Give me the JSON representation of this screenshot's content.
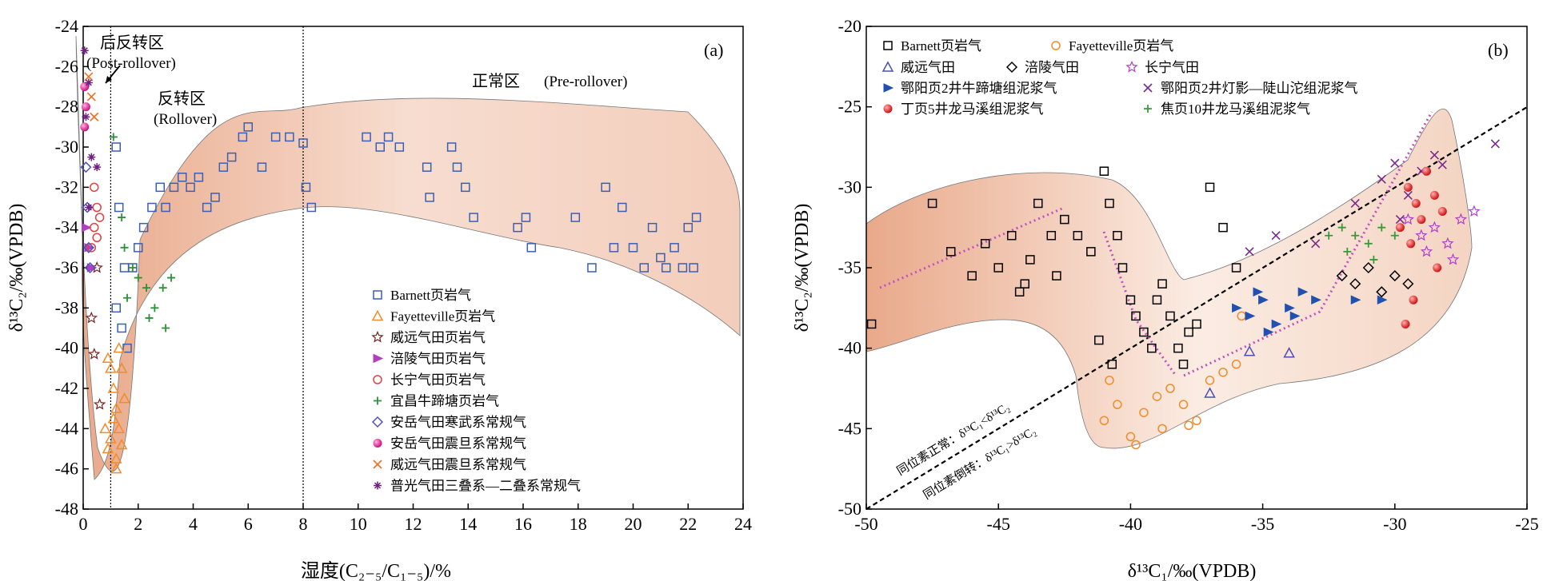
{
  "figure": {
    "panel_a": {
      "label": "(a)",
      "xlabel": "湿度(C₂₋₅/C₁₋₅)/%",
      "ylabel": "δ¹³C₂/‰(VPDB)",
      "zones": [
        {
          "name": "后反转区",
          "en": "(Post-rollover)"
        },
        {
          "name": "反转区",
          "en": "(Rollover)"
        },
        {
          "name": "正常区",
          "en": "(Pre-rollover)"
        }
      ]
    },
    "panel_b": {
      "label": "(b)",
      "xlabel": "δ¹³C₁/‰(VPDB)",
      "ylabel": "δ¹³C₂/‰(VPDB)",
      "line_normal": "同位素正常：δ¹³C₁<δ¹³C₂",
      "line_reversed": "同位素倒转：δ¹³C₁>δ¹³C₂"
    }
  },
  "colors": {
    "barnett_a": "#3a5fb5",
    "fayetteville": "#f08c2a",
    "weiyuan": "#7a2020",
    "fuling_a": "#b040c0",
    "changning_a": "#e04040",
    "yichang": "#2f8f3a",
    "anyue_camb": "#5050c0",
    "anyue_sin": "#e0208c",
    "weiyuan_sin": "#f07020",
    "puguang": "#702080",
    "blue_tri": "#2050b0",
    "purple_x": "#7a2a8c",
    "red_dot": "#e02020",
    "green_plus": "#3a9a3a",
    "star_b": "#b040c8",
    "envelope": "#eec0a4"
  },
  "chart_data": [
    {
      "type": "scatter",
      "panel": "a",
      "xlabel": "湿度(C₂₋₅/C₁₋₅)/%",
      "ylabel": "δ¹³C₂/‰(VPDB)",
      "xlim": [
        0,
        24
      ],
      "ylim": [
        -48,
        -24
      ],
      "xticks": [
        0,
        2,
        4,
        6,
        8,
        10,
        12,
        14,
        16,
        18,
        20,
        22,
        24
      ],
      "yticks": [
        -24,
        -26,
        -28,
        -30,
        -32,
        -34,
        -36,
        -38,
        -40,
        -42,
        -44,
        -46,
        -48
      ],
      "vlines": [
        1,
        8
      ],
      "legend_position": "bottom-center",
      "series": [
        {
          "name": "Barnett页岩气",
          "marker": "square",
          "points": [
            [
              1.2,
              -30
            ],
            [
              1.3,
              -33
            ],
            [
              1.5,
              -36
            ],
            [
              1.2,
              -38
            ],
            [
              1.4,
              -39
            ],
            [
              1.6,
              -40
            ],
            [
              1.8,
              -36
            ],
            [
              2.0,
              -35
            ],
            [
              2.2,
              -34
            ],
            [
              2.5,
              -33
            ],
            [
              2.8,
              -32
            ],
            [
              3.0,
              -33
            ],
            [
              3.3,
              -32
            ],
            [
              3.6,
              -31.5
            ],
            [
              3.9,
              -32
            ],
            [
              4.2,
              -31.5
            ],
            [
              4.5,
              -33
            ],
            [
              4.8,
              -32.5
            ],
            [
              5.1,
              -31
            ],
            [
              5.4,
              -30.5
            ],
            [
              5.8,
              -29.5
            ],
            [
              6.0,
              -29
            ],
            [
              6.5,
              -31
            ],
            [
              7.0,
              -29.5
            ],
            [
              7.5,
              -29.5
            ],
            [
              8.0,
              -29.8
            ],
            [
              8.1,
              -32
            ],
            [
              8.3,
              -33
            ],
            [
              10.3,
              -29.5
            ],
            [
              10.8,
              -30
            ],
            [
              11.1,
              -29.5
            ],
            [
              11.5,
              -30
            ],
            [
              12.5,
              -31
            ],
            [
              12.6,
              -32.5
            ],
            [
              13.4,
              -30
            ],
            [
              13.6,
              -31
            ],
            [
              13.9,
              -32
            ],
            [
              14.2,
              -33.5
            ],
            [
              15.8,
              -34
            ],
            [
              16.1,
              -33.5
            ],
            [
              16.3,
              -35
            ],
            [
              17.9,
              -33.5
            ],
            [
              18.5,
              -36
            ],
            [
              19.0,
              -32
            ],
            [
              19.3,
              -35
            ],
            [
              19.6,
              -33
            ],
            [
              20.0,
              -35
            ],
            [
              20.4,
              -36
            ],
            [
              20.7,
              -34
            ],
            [
              21.0,
              -35.5
            ],
            [
              21.2,
              -36
            ],
            [
              21.5,
              -35
            ],
            [
              21.8,
              -36
            ],
            [
              22.0,
              -34
            ],
            [
              22.3,
              -33.5
            ],
            [
              22.2,
              -36
            ]
          ]
        },
        {
          "name": "Fayetteville页岩气",
          "marker": "triangle",
          "points": [
            [
              0.9,
              -40.5
            ],
            [
              1.0,
              -41
            ],
            [
              1.1,
              -42
            ],
            [
              1.2,
              -43
            ],
            [
              1.3,
              -44
            ],
            [
              1.0,
              -44.5
            ],
            [
              0.9,
              -45
            ],
            [
              1.2,
              -45.5
            ],
            [
              1.4,
              -41
            ],
            [
              1.5,
              -42.5
            ],
            [
              1.3,
              -40
            ],
            [
              1.1,
              -43.5
            ],
            [
              0.8,
              -44
            ],
            [
              1.4,
              -44.8
            ],
            [
              1.2,
              -46
            ]
          ]
        },
        {
          "name": "威远气田页岩气",
          "marker": "star",
          "points": [
            [
              0.3,
              -38.5
            ],
            [
              0.4,
              -40.3
            ],
            [
              0.6,
              -42.8
            ],
            [
              0.5,
              -36
            ]
          ]
        },
        {
          "name": "涪陵气田页岩气",
          "marker": "tri-right",
          "points": [
            [
              0.1,
              -34
            ],
            [
              0.2,
              -35
            ],
            [
              0.3,
              -36
            ]
          ]
        },
        {
          "name": "长宁气田页岩气",
          "marker": "circle",
          "points": [
            [
              0.4,
              -32
            ],
            [
              0.5,
              -33
            ],
            [
              0.4,
              -34
            ],
            [
              0.5,
              -34.5
            ],
            [
              0.6,
              -33.5
            ],
            [
              0.3,
              -35
            ]
          ]
        },
        {
          "name": "宜昌牛蹄塘页岩气",
          "marker": "plus",
          "points": [
            [
              1.1,
              -29.5
            ],
            [
              1.4,
              -33.5
            ],
            [
              1.5,
              -35
            ],
            [
              1.8,
              -36
            ],
            [
              2.0,
              -36.5
            ],
            [
              2.3,
              -37
            ],
            [
              2.6,
              -38
            ],
            [
              2.9,
              -37
            ],
            [
              3.2,
              -36.5
            ],
            [
              3.0,
              -39
            ],
            [
              2.4,
              -38.5
            ],
            [
              1.6,
              -37.5
            ]
          ]
        },
        {
          "name": "安岳气田寒武系常规气",
          "marker": "diamond",
          "points": [
            [
              0.1,
              -31
            ],
            [
              0.15,
              -33
            ],
            [
              0.2,
              -35
            ],
            [
              0.25,
              -36
            ]
          ]
        },
        {
          "name": "安岳气田震旦系常规气",
          "marker": "ball",
          "points": [
            [
              0.05,
              -27
            ],
            [
              0.1,
              -28
            ],
            [
              0.05,
              -29
            ]
          ]
        },
        {
          "name": "威远气田震旦系常规气",
          "marker": "x",
          "points": [
            [
              0.2,
              -26.5
            ],
            [
              0.3,
              -27.5
            ],
            [
              0.4,
              -28.5
            ]
          ]
        },
        {
          "name": "普光气田三叠系—二叠系常规气",
          "marker": "asterisk",
          "points": [
            [
              0.05,
              -25.2
            ],
            [
              0.2,
              -26.8
            ],
            [
              0.1,
              -28.5
            ],
            [
              0.3,
              -30.5
            ],
            [
              0.5,
              -31
            ],
            [
              0.2,
              -33
            ]
          ]
        }
      ]
    },
    {
      "type": "scatter",
      "panel": "b",
      "xlabel": "δ¹³C₁/‰(VPDB)",
      "ylabel": "δ¹³C₂/‰(VPDB)",
      "xlim": [
        -50,
        -25
      ],
      "ylim": [
        -50,
        -20
      ],
      "xticks": [
        -50,
        -45,
        -40,
        -35,
        -30,
        -25
      ],
      "yticks": [
        -20,
        -25,
        -30,
        -35,
        -40,
        -45,
        -50
      ],
      "legend_position": "top-left",
      "series": [
        {
          "name": "Barnett页岩气",
          "marker": "square",
          "points": [
            [
              -47.5,
              -31
            ],
            [
              -46.8,
              -34
            ],
            [
              -46,
              -35.5
            ],
            [
              -45.5,
              -33.5
            ],
            [
              -45,
              -35
            ],
            [
              -44.5,
              -33
            ],
            [
              -44,
              -36
            ],
            [
              -43.5,
              -31
            ],
            [
              -43,
              -33
            ],
            [
              -42.5,
              -32
            ],
            [
              -42,
              -33
            ],
            [
              -41.5,
              -34
            ],
            [
              -41,
              -29
            ],
            [
              -40.8,
              -31
            ],
            [
              -40.5,
              -33
            ],
            [
              -40.3,
              -35
            ],
            [
              -40,
              -37
            ],
            [
              -39.8,
              -38
            ],
            [
              -39.5,
              -39
            ],
            [
              -39.2,
              -40
            ],
            [
              -39,
              -37
            ],
            [
              -38.8,
              -36
            ],
            [
              -38.5,
              -38
            ],
            [
              -38.2,
              -40
            ],
            [
              -38,
              -41
            ],
            [
              -37.8,
              -39
            ],
            [
              -37.5,
              -38.5
            ],
            [
              -37,
              -30
            ],
            [
              -36.5,
              -32.5
            ],
            [
              -36,
              -35
            ],
            [
              -41.2,
              -39.5
            ],
            [
              -40.7,
              -41
            ],
            [
              -49.8,
              -38.5
            ],
            [
              -44.2,
              -36.5
            ],
            [
              -42.8,
              -35.5
            ],
            [
              -43.8,
              -34.5
            ]
          ]
        },
        {
          "name": "Fayetteville页岩气",
          "marker": "circle",
          "points": [
            [
              -41,
              -44.5
            ],
            [
              -40.5,
              -43.5
            ],
            [
              -40,
              -45.5
            ],
            [
              -39.5,
              -44
            ],
            [
              -39,
              -43
            ],
            [
              -38.5,
              -42.5
            ],
            [
              -38,
              -43.5
            ],
            [
              -37.5,
              -44.5
            ],
            [
              -37,
              -42
            ],
            [
              -36.5,
              -41.5
            ],
            [
              -36,
              -41
            ],
            [
              -35.8,
              -38
            ],
            [
              -39.8,
              -46
            ],
            [
              -38.8,
              -45
            ],
            [
              -37.8,
              -44.8
            ],
            [
              -40.8,
              -42
            ]
          ]
        },
        {
          "name": "威远气田",
          "marker": "triangle",
          "points": [
            [
              -37,
              -42.8
            ],
            [
              -35.5,
              -40.2
            ],
            [
              -34,
              -40.3
            ]
          ]
        },
        {
          "name": "涪陵气田",
          "marker": "diamond",
          "points": [
            [
              -32,
              -35.5
            ],
            [
              -31.5,
              -36
            ],
            [
              -31,
              -35
            ],
            [
              -30.5,
              -36.5
            ],
            [
              -30,
              -35.5
            ],
            [
              -29.5,
              -36
            ]
          ]
        },
        {
          "name": "长宁气田",
          "marker": "star",
          "points": [
            [
              -29.5,
              -32
            ],
            [
              -29,
              -33
            ],
            [
              -28.5,
              -32.5
            ],
            [
              -28,
              -33.5
            ],
            [
              -27.5,
              -32
            ],
            [
              -27,
              -31.5
            ],
            [
              -28.8,
              -34
            ],
            [
              -27.8,
              -34.5
            ]
          ]
        },
        {
          "name": "鄂阳页2井牛蹄塘组泥浆气",
          "marker": "tri-right",
          "points": [
            [
              -35.5,
              -38
            ],
            [
              -35,
              -37
            ],
            [
              -34.5,
              -38.5
            ],
            [
              -34,
              -37.5
            ],
            [
              -33.5,
              -36.5
            ],
            [
              -33,
              -37
            ],
            [
              -34.8,
              -39
            ],
            [
              -35.2,
              -36.5
            ],
            [
              -33.8,
              -38
            ],
            [
              -36,
              -37.5
            ],
            [
              -31.5,
              -37
            ],
            [
              -30.5,
              -37
            ]
          ]
        },
        {
          "name": "鄂阳页2井灯影—陡山沱组泥浆气",
          "marker": "x",
          "points": [
            [
              -35.5,
              -34
            ],
            [
              -34.5,
              -33
            ],
            [
              -33,
              -33.5
            ],
            [
              -31.5,
              -31
            ],
            [
              -30.5,
              -29.5
            ],
            [
              -30,
              -28.5
            ],
            [
              -29.5,
              -30.5
            ],
            [
              -29,
              -29
            ],
            [
              -28.5,
              -28
            ],
            [
              -28.2,
              -28.6
            ],
            [
              -26.2,
              -27.3
            ],
            [
              -29.8,
              -32
            ]
          ]
        },
        {
          "name": "丁页5井龙马溪组泥浆气",
          "marker": "ball",
          "points": [
            [
              -29.5,
              -30
            ],
            [
              -29.2,
              -31
            ],
            [
              -28.8,
              -29
            ],
            [
              -28.5,
              -30.5
            ],
            [
              -29,
              -32
            ],
            [
              -28.2,
              -31.5
            ],
            [
              -29.8,
              -32.5
            ],
            [
              -28.4,
              -35
            ],
            [
              -29.3,
              -37
            ],
            [
              -29.6,
              -38.5
            ],
            [
              -29.4,
              -33.5
            ]
          ]
        },
        {
          "name": "焦页10井龙马溪组泥浆气",
          "marker": "plus",
          "points": [
            [
              -32,
              -32.5
            ],
            [
              -31.5,
              -33
            ],
            [
              -31,
              -33.5
            ],
            [
              -30.5,
              -32.5
            ],
            [
              -30,
              -33
            ],
            [
              -31.8,
              -34
            ],
            [
              -30.8,
              -34.5
            ],
            [
              -32.5,
              -33
            ]
          ]
        }
      ]
    }
  ]
}
